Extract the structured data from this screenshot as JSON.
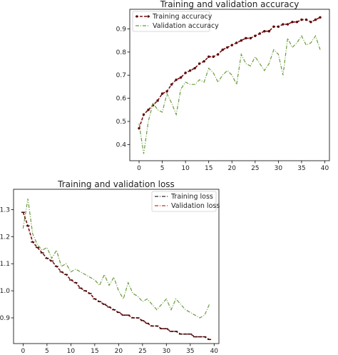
{
  "colors": {
    "training": "#7a1010",
    "training_marker": "#5a0000",
    "validation": "#6a9a3a",
    "loss_training_line": "#2b2b2b",
    "loss_validation_line": "#c0392b"
  },
  "chart_data": [
    {
      "type": "line",
      "title": "Training and validation accuracy",
      "xlabel": "",
      "ylabel": "",
      "xlim": [
        -2,
        41
      ],
      "ylim": [
        0.33,
        0.985
      ],
      "xticks": [
        0,
        5,
        10,
        15,
        20,
        25,
        30,
        35,
        40
      ],
      "yticks": [
        0.4,
        0.5,
        0.6,
        0.7,
        0.8,
        0.9
      ],
      "legend_position": "top-left",
      "x": [
        0,
        1,
        2,
        3,
        4,
        5,
        6,
        7,
        8,
        9,
        10,
        11,
        12,
        13,
        14,
        15,
        16,
        17,
        18,
        19,
        20,
        21,
        22,
        23,
        24,
        25,
        26,
        27,
        28,
        29,
        30,
        31,
        32,
        33,
        34,
        35,
        36,
        37,
        38,
        39
      ],
      "series": [
        {
          "name": "Training accuracy",
          "style": "dashed with markers",
          "values": [
            0.47,
            0.53,
            0.55,
            0.57,
            0.59,
            0.62,
            0.63,
            0.66,
            0.68,
            0.69,
            0.71,
            0.72,
            0.73,
            0.75,
            0.76,
            0.78,
            0.78,
            0.79,
            0.81,
            0.82,
            0.83,
            0.84,
            0.85,
            0.86,
            0.86,
            0.87,
            0.88,
            0.89,
            0.89,
            0.91,
            0.91,
            0.92,
            0.92,
            0.93,
            0.93,
            0.94,
            0.94,
            0.93,
            0.94,
            0.95
          ]
        },
        {
          "name": "Validation accuracy",
          "style": "dash-dot",
          "values": [
            0.49,
            0.36,
            0.5,
            0.58,
            0.55,
            0.54,
            0.62,
            0.58,
            0.53,
            0.64,
            0.67,
            0.66,
            0.66,
            0.68,
            0.67,
            0.73,
            0.71,
            0.67,
            0.7,
            0.72,
            0.7,
            0.66,
            0.79,
            0.75,
            0.74,
            0.78,
            0.75,
            0.72,
            0.75,
            0.81,
            0.79,
            0.7,
            0.86,
            0.82,
            0.84,
            0.87,
            0.83,
            0.84,
            0.87,
            0.81
          ]
        }
      ]
    },
    {
      "type": "line",
      "title": "Training and validation loss",
      "xlabel": "",
      "ylabel": "",
      "xlim": [
        -2,
        41
      ],
      "ylim": [
        0.805,
        1.375
      ],
      "xticks": [
        0,
        5,
        10,
        15,
        20,
        25,
        30,
        35,
        40
      ],
      "yticks": [
        0.8,
        0.9,
        1.0,
        1.1,
        1.2,
        1.3
      ],
      "legend_position": "top-right",
      "x": [
        0,
        1,
        2,
        3,
        4,
        5,
        6,
        7,
        8,
        9,
        10,
        11,
        12,
        13,
        14,
        15,
        16,
        17,
        18,
        19,
        20,
        21,
        22,
        23,
        24,
        25,
        26,
        27,
        28,
        29,
        30,
        31,
        32,
        33,
        34,
        35,
        36,
        37,
        38,
        39
      ],
      "series": [
        {
          "name": "Training loss",
          "style": "dash-dot",
          "values": [
            1.29,
            1.24,
            1.18,
            1.16,
            1.14,
            1.12,
            1.11,
            1.09,
            1.07,
            1.06,
            1.04,
            1.03,
            1.01,
            1.0,
            0.99,
            0.97,
            0.96,
            0.95,
            0.94,
            0.93,
            0.92,
            0.91,
            0.91,
            0.9,
            0.9,
            0.89,
            0.88,
            0.87,
            0.87,
            0.86,
            0.86,
            0.85,
            0.85,
            0.84,
            0.84,
            0.84,
            0.83,
            0.83,
            0.83,
            0.82
          ]
        },
        {
          "name": "Validation loss",
          "style": "dash-dot",
          "values": [
            1.23,
            1.34,
            1.21,
            1.17,
            1.15,
            1.16,
            1.12,
            1.15,
            1.09,
            1.1,
            1.07,
            1.08,
            1.07,
            1.06,
            1.05,
            1.04,
            1.02,
            1.06,
            1.02,
            1.05,
            1.0,
            0.97,
            1.03,
            0.99,
            0.98,
            0.96,
            0.97,
            0.95,
            0.93,
            0.95,
            0.97,
            0.93,
            0.97,
            0.95,
            0.93,
            0.92,
            0.91,
            0.9,
            0.91,
            0.95
          ]
        }
      ]
    }
  ]
}
